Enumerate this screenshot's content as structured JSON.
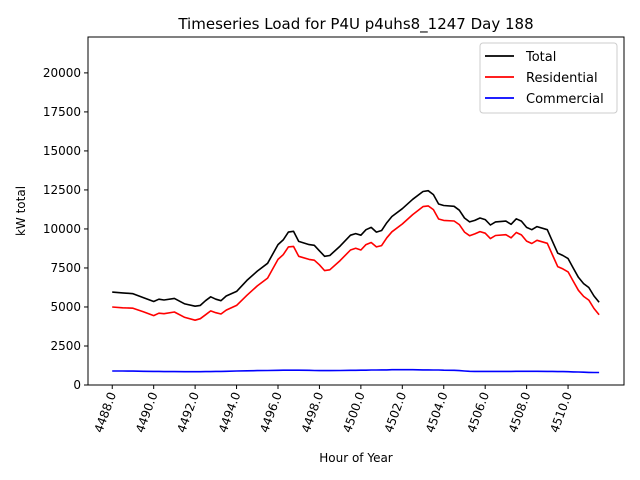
{
  "chart_data": {
    "type": "line",
    "title": "Timeseries Load for P4U p4uhs8_1247  Day 188",
    "xlabel": "Hour of Year",
    "ylabel": "kW total",
    "xlim": [
      4486.83,
      4512.7
    ],
    "ylim": [
      0,
      22300
    ],
    "xticks": [
      4488,
      4490,
      4492,
      4494,
      4496,
      4498,
      4500,
      4502,
      4504,
      4506,
      4508,
      4510
    ],
    "xtick_labels": [
      "4488.0",
      "4490.0",
      "4492.0",
      "4494.0",
      "4496.0",
      "4498.0",
      "4500.0",
      "4502.0",
      "4504.0",
      "4506.0",
      "4508.0",
      "4510.0"
    ],
    "yticks": [
      0,
      2500,
      5000,
      7500,
      10000,
      12500,
      15000,
      17500,
      20000
    ],
    "ytick_labels": [
      "0",
      "2500",
      "5000",
      "7500",
      "10000",
      "12500",
      "15000",
      "17500",
      "20000"
    ],
    "grid": false,
    "legend_position": "top-right",
    "x": [
      4488,
      4488.5,
      4489,
      4489.5,
      4490,
      4490.25,
      4490.5,
      4491,
      4491.5,
      4492,
      4492.25,
      4492.5,
      4492.75,
      4493,
      4493.25,
      4493.5,
      4494,
      4494.5,
      4495,
      4495.5,
      4496,
      4496.25,
      4496.5,
      4496.75,
      4497,
      4497.5,
      4497.75,
      4498,
      4498.25,
      4498.5,
      4499,
      4499.5,
      4499.75,
      4500,
      4500.25,
      4500.5,
      4500.75,
      4501,
      4501.25,
      4501.5,
      4502,
      4502.5,
      4503,
      4503.25,
      4503.5,
      4503.75,
      4504,
      4504.5,
      4504.75,
      4505,
      4505.25,
      4505.5,
      4505.75,
      4506,
      4506.25,
      4506.5,
      4507,
      4507.25,
      4507.5,
      4507.75,
      4508,
      4508.25,
      4508.5,
      4509,
      4509.25,
      4509.5,
      4509.75,
      4510,
      4510.25,
      4510.5,
      4510.75,
      4511,
      4511.25,
      4511.5
    ],
    "series": [
      {
        "name": "Total",
        "color": "#000000",
        "values": [
          5950,
          5900,
          5850,
          5600,
          5350,
          5500,
          5450,
          5550,
          5200,
          5050,
          5100,
          5400,
          5650,
          5500,
          5400,
          5700,
          6000,
          6700,
          7300,
          7800,
          9000,
          9300,
          9800,
          9850,
          9200,
          9000,
          8950,
          8600,
          8250,
          8300,
          8900,
          9600,
          9700,
          9600,
          9950,
          10100,
          9800,
          9900,
          10400,
          10800,
          11300,
          11900,
          12400,
          12450,
          12200,
          11600,
          11500,
          11450,
          11200,
          10700,
          10450,
          10550,
          10700,
          10600,
          10250,
          10450,
          10500,
          10300,
          10650,
          10500,
          10100,
          9950,
          10150,
          9950,
          9200,
          8450,
          8300,
          8100,
          7500,
          6900,
          6500,
          6250,
          5700,
          5300
        ]
      },
      {
        "name": "Residential",
        "color": "#ff0000",
        "values": [
          5000,
          4950,
          4920,
          4700,
          4450,
          4600,
          4570,
          4680,
          4330,
          4150,
          4250,
          4500,
          4750,
          4630,
          4550,
          4800,
          5100,
          5750,
          6350,
          6850,
          8050,
          8350,
          8850,
          8880,
          8250,
          8050,
          8000,
          7700,
          7330,
          7380,
          7970,
          8650,
          8760,
          8650,
          9000,
          9130,
          8850,
          8930,
          9430,
          9820,
          10320,
          10920,
          11430,
          11480,
          11240,
          10640,
          10550,
          10510,
          10280,
          9800,
          9570,
          9680,
          9830,
          9730,
          9380,
          9580,
          9630,
          9430,
          9770,
          9620,
          9220,
          9070,
          9270,
          9080,
          8330,
          7590,
          7440,
          7250,
          6660,
          6070,
          5680,
          5440,
          4900,
          4500
        ]
      },
      {
        "name": "Commercial",
        "color": "#0000ff",
        "values": [
          900,
          900,
          890,
          880,
          870,
          870,
          860,
          860,
          850,
          850,
          850,
          860,
          860,
          870,
          870,
          880,
          900,
          910,
          920,
          930,
          940,
          950,
          950,
          950,
          950,
          940,
          930,
          920,
          920,
          920,
          930,
          940,
          940,
          950,
          950,
          960,
          960,
          970,
          970,
          980,
          980,
          980,
          970,
          970,
          960,
          960,
          950,
          940,
          920,
          900,
          880,
          870,
          870,
          870,
          870,
          870,
          870,
          870,
          880,
          880,
          880,
          880,
          880,
          870,
          870,
          860,
          860,
          850,
          840,
          830,
          820,
          810,
          800,
          800
        ]
      }
    ]
  }
}
